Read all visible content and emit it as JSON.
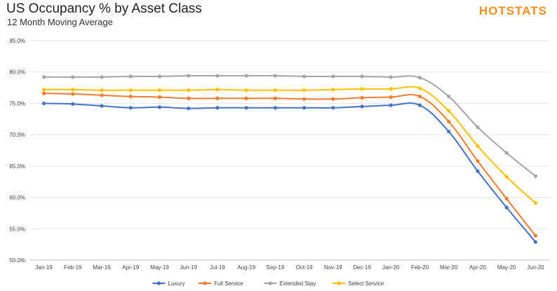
{
  "header": {
    "title": "US Occupancy % by Asset Class",
    "subtitle": "12 Month Moving Average",
    "logo": "HOTSTATS"
  },
  "chart_data": {
    "type": "line",
    "title": "US Occupancy % by Asset Class",
    "subtitle": "12 Month Moving Average",
    "xlabel": "",
    "ylabel": "",
    "ylim": [
      50,
      85
    ],
    "yticks": [
      "50.0%",
      "55.0%",
      "60.0%",
      "65.0%",
      "70.0%",
      "75.0%",
      "80.0%",
      "85.0%"
    ],
    "ytick_values": [
      50,
      55,
      60,
      65,
      70,
      75,
      80,
      85
    ],
    "grid": true,
    "legend_position": "bottom",
    "categories": [
      "Jan-19",
      "Feb-19",
      "Mar-19",
      "Apr-19",
      "May-19",
      "Jun-19",
      "Jul-19",
      "Aug-19",
      "Sep-19",
      "Oct-19",
      "Nov-19",
      "Dec-19",
      "Jan-20",
      "Feb-20",
      "Mar-20",
      "Apr-20",
      "May-20",
      "Jun-20"
    ],
    "series": [
      {
        "name": "Luxury",
        "color": "#4472c4",
        "values": [
          75.0,
          74.9,
          74.6,
          74.3,
          74.4,
          74.2,
          74.3,
          74.3,
          74.3,
          74.3,
          74.3,
          74.5,
          74.7,
          74.7,
          70.5,
          64.2,
          58.4,
          52.9
        ]
      },
      {
        "name": "Full Service",
        "color": "#ed7d31",
        "values": [
          76.6,
          76.5,
          76.3,
          76.1,
          76.0,
          75.8,
          75.8,
          75.8,
          75.8,
          75.7,
          75.7,
          75.9,
          76.0,
          76.1,
          72.1,
          65.8,
          59.8,
          53.9
        ]
      },
      {
        "name": "Extended Stay",
        "color": "#a5a5a5",
        "values": [
          79.2,
          79.2,
          79.2,
          79.3,
          79.3,
          79.4,
          79.4,
          79.4,
          79.4,
          79.3,
          79.3,
          79.3,
          79.2,
          79.1,
          76.1,
          71.2,
          67.1,
          63.4
        ]
      },
      {
        "name": "Select Service",
        "color": "#ffc000",
        "values": [
          77.2,
          77.2,
          77.1,
          77.1,
          77.1,
          77.1,
          77.2,
          77.1,
          77.1,
          77.1,
          77.2,
          77.3,
          77.3,
          77.4,
          73.8,
          68.2,
          63.3,
          59.1
        ]
      }
    ]
  }
}
